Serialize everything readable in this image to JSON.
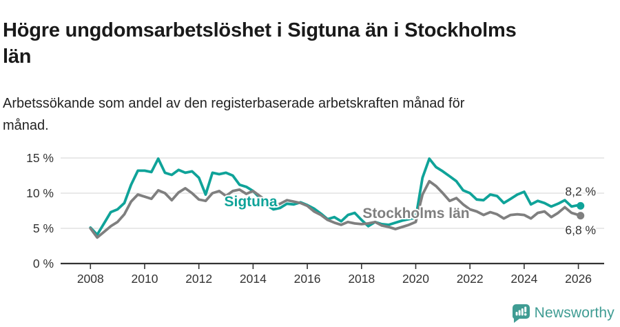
{
  "header": {
    "title_lines": [
      "Högre ungdomsarbetslöshet i Sigtuna än i Stockholms",
      "län"
    ],
    "subtitle_lines": [
      "Arbetssökande som andel av den registerbaserade arbetskraften månad för",
      "månad."
    ]
  },
  "chart_data": {
    "type": "line",
    "title": "Högre ungdomsarbetslöshet i Sigtuna än i Stockholms län",
    "subtitle": "Arbetssökande som andel av den registerbaserade arbetskraften månad för månad.",
    "unit": "%",
    "grid": true,
    "xlim": [
      2006.9,
      2026.9
    ],
    "ylim": [
      0,
      15.7
    ],
    "x_ticks": [
      "2008",
      "2010",
      "2012",
      "2014",
      "2016",
      "2018",
      "2020",
      "2022",
      "2024",
      "2026"
    ],
    "y_ticks": [
      {
        "label": "0 %",
        "value": 0
      },
      {
        "label": "5 %",
        "value": 5
      },
      {
        "label": "10 %",
        "value": 10
      },
      {
        "label": "15 %",
        "value": 15
      }
    ],
    "x": [
      2008.0,
      2008.25,
      2008.5,
      2008.75,
      2009.0,
      2009.25,
      2009.5,
      2009.75,
      2010.0,
      2010.25,
      2010.5,
      2010.75,
      2011.0,
      2011.25,
      2011.5,
      2011.75,
      2012.0,
      2012.25,
      2012.5,
      2012.75,
      2013.0,
      2013.25,
      2013.5,
      2013.75,
      2014.0,
      2014.25,
      2014.5,
      2014.75,
      2015.0,
      2015.25,
      2015.5,
      2015.75,
      2016.0,
      2016.25,
      2016.5,
      2016.75,
      2017.0,
      2017.25,
      2017.5,
      2017.75,
      2018.0,
      2018.25,
      2018.5,
      2018.75,
      2019.0,
      2019.25,
      2019.5,
      2019.75,
      2020.0,
      2020.25,
      2020.5,
      2020.75,
      2021.0,
      2021.25,
      2021.5,
      2021.75,
      2022.0,
      2022.25,
      2022.5,
      2022.75,
      2023.0,
      2023.25,
      2023.5,
      2023.75,
      2024.0,
      2024.25,
      2024.5,
      2024.75,
      2025.0,
      2025.25,
      2025.5,
      2025.75,
      2026.0,
      2026.08
    ],
    "series": [
      {
        "name": "Sigtuna",
        "color": "#0fa399",
        "end_label": "8,2 %",
        "end_value": 8.2,
        "values": [
          5.1,
          4.1,
          5.7,
          7.3,
          7.7,
          8.6,
          11.2,
          13.2,
          13.2,
          13.0,
          14.9,
          12.9,
          12.6,
          13.3,
          12.9,
          13.1,
          12.2,
          9.8,
          12.9,
          12.7,
          12.9,
          12.5,
          11.2,
          10.9,
          10.3,
          9.3,
          8.3,
          7.7,
          7.9,
          8.5,
          8.4,
          8.7,
          8.3,
          7.8,
          7.1,
          6.3,
          6.6,
          6.0,
          6.9,
          7.2,
          6.2,
          5.3,
          5.9,
          5.6,
          5.5,
          5.8,
          6.1,
          6.3,
          6.5,
          12.2,
          14.9,
          13.7,
          13.1,
          12.4,
          11.7,
          10.4,
          10.0,
          9.1,
          9.0,
          9.8,
          9.6,
          8.6,
          9.2,
          9.8,
          10.2,
          8.4,
          8.9,
          8.6,
          8.1,
          8.5,
          9.0,
          8.1,
          8.3,
          8.2
        ]
      },
      {
        "name": "Stockholms län",
        "color": "#7f7f7f",
        "end_label": "6,8 %",
        "end_value": 6.8,
        "values": [
          5.0,
          3.7,
          4.5,
          5.3,
          5.9,
          7.0,
          8.8,
          9.8,
          9.5,
          9.2,
          10.4,
          10.0,
          9.0,
          10.1,
          10.7,
          10.0,
          9.1,
          8.9,
          10.0,
          10.3,
          9.6,
          10.3,
          10.5,
          9.9,
          10.3,
          9.6,
          8.9,
          8.2,
          8.5,
          9.0,
          8.8,
          8.6,
          8.2,
          7.4,
          6.9,
          6.2,
          5.8,
          5.5,
          5.9,
          5.7,
          5.6,
          5.7,
          5.9,
          5.4,
          5.2,
          4.9,
          5.2,
          5.5,
          5.9,
          9.8,
          11.7,
          11.0,
          10.0,
          8.9,
          9.3,
          8.4,
          7.7,
          7.4,
          6.9,
          7.3,
          7.0,
          6.4,
          6.9,
          7.0,
          6.9,
          6.4,
          7.2,
          7.4,
          6.6,
          7.2,
          8.0,
          7.2,
          6.9,
          6.8
        ]
      }
    ],
    "colors": {
      "grid": "#dcdcdc",
      "axis": "#333333",
      "tick_text": "#333333",
      "end_label_text": "#333333"
    }
  },
  "footer": {
    "brand": "Newsworthy",
    "brand_color": "#3f9c93"
  }
}
